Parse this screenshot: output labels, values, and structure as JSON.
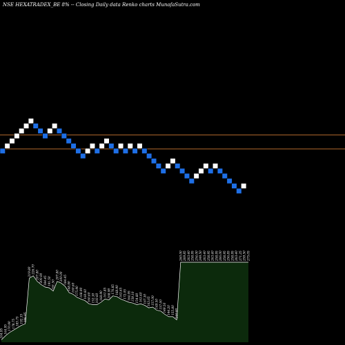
{
  "chart_data": {
    "type": "renko",
    "title": "NSE HEXATRADEX_BE 8% -- Closing Daily data Renko charts MunafaSutra.com",
    "colors": {
      "background": "#000000",
      "brick_up": "#ffffff",
      "brick_down": "#1e6fe6",
      "brick_border": "#000000",
      "reference_line": "#b36a2d",
      "volume_fill": "#0c2a0c",
      "volume_stroke": "#ffffff"
    },
    "bricks": [
      {
        "dir": "down",
        "level": 0
      },
      {
        "dir": "up",
        "level": 1
      },
      {
        "dir": "up",
        "level": 2
      },
      {
        "dir": "up",
        "level": 3
      },
      {
        "dir": "up",
        "level": 4
      },
      {
        "dir": "up",
        "level": 5
      },
      {
        "dir": "up",
        "level": 6
      },
      {
        "dir": "down",
        "level": 5
      },
      {
        "dir": "down",
        "level": 4
      },
      {
        "dir": "down",
        "level": 3
      },
      {
        "dir": "up",
        "level": 4
      },
      {
        "dir": "up",
        "level": 5
      },
      {
        "dir": "down",
        "level": 4
      },
      {
        "dir": "down",
        "level": 3
      },
      {
        "dir": "down",
        "level": 2
      },
      {
        "dir": "down",
        "level": 1
      },
      {
        "dir": "down",
        "level": 0
      },
      {
        "dir": "down",
        "level": -1
      },
      {
        "dir": "up",
        "level": 0
      },
      {
        "dir": "up",
        "level": 1
      },
      {
        "dir": "down",
        "level": 0
      },
      {
        "dir": "up",
        "level": 1
      },
      {
        "dir": "up",
        "level": 2
      },
      {
        "dir": "down",
        "level": 1
      },
      {
        "dir": "down",
        "level": 0
      },
      {
        "dir": "up",
        "level": 1
      },
      {
        "dir": "down",
        "level": 0
      },
      {
        "dir": "up",
        "level": 1
      },
      {
        "dir": "down",
        "level": 0
      },
      {
        "dir": "up",
        "level": 1
      },
      {
        "dir": "down",
        "level": 0
      },
      {
        "dir": "down",
        "level": -1
      },
      {
        "dir": "down",
        "level": -2
      },
      {
        "dir": "down",
        "level": -3
      },
      {
        "dir": "down",
        "level": -4
      },
      {
        "dir": "up",
        "level": -3
      },
      {
        "dir": "up",
        "level": -2
      },
      {
        "dir": "down",
        "level": -3
      },
      {
        "dir": "down",
        "level": -4
      },
      {
        "dir": "down",
        "level": -5
      },
      {
        "dir": "down",
        "level": -6
      },
      {
        "dir": "up",
        "level": -5
      },
      {
        "dir": "up",
        "level": -4
      },
      {
        "dir": "up",
        "level": -3
      },
      {
        "dir": "down",
        "level": -4
      },
      {
        "dir": "up",
        "level": -3
      },
      {
        "dir": "down",
        "level": -4
      },
      {
        "dir": "down",
        "level": -5
      },
      {
        "dir": "down",
        "level": -6
      },
      {
        "dir": "down",
        "level": -7
      },
      {
        "dir": "down",
        "level": -8
      },
      {
        "dir": "up",
        "level": -7
      }
    ],
    "reference_lines": [
      {
        "level": 3.2
      },
      {
        "level": 0.4
      }
    ],
    "volume": [
      {
        "label": "164.95",
        "value": 0.03
      },
      {
        "label": "164.95",
        "value": 0.08
      },
      {
        "label": "170.90",
        "value": 0.12
      },
      {
        "label": "178.75",
        "value": 0.15
      },
      {
        "label": "185.75",
        "value": 0.18
      },
      {
        "label": "192.35",
        "value": 0.21
      },
      {
        "label": "198.95",
        "value": 0.23
      },
      {
        "label": "219.80",
        "value": 0.8
      },
      {
        "label": "226.70",
        "value": 0.83
      },
      {
        "label": "207.80",
        "value": 0.76
      },
      {
        "label": "200.00",
        "value": 0.72
      },
      {
        "label": "184.45",
        "value": 0.69
      },
      {
        "label": "191.50",
        "value": 0.68
      },
      {
        "label": "191.50",
        "value": 0.64
      },
      {
        "label": "207.80",
        "value": 0.76
      },
      {
        "label": "200.00",
        "value": 0.74
      },
      {
        "label": "184.45",
        "value": 0.7
      },
      {
        "label": "168.90",
        "value": 0.62
      },
      {
        "label": "160.60",
        "value": 0.6
      },
      {
        "label": "175.90",
        "value": 0.56
      },
      {
        "label": "168.90",
        "value": 0.54
      },
      {
        "label": "160.60",
        "value": 0.52
      },
      {
        "label": "160.60",
        "value": 0.48
      },
      {
        "label": "152.30",
        "value": 0.47
      },
      {
        "label": "160.60",
        "value": 0.47
      },
      {
        "label": "168.90",
        "value": 0.5
      },
      {
        "label": "161.85",
        "value": 0.54
      },
      {
        "label": "168.90",
        "value": 0.53
      },
      {
        "label": "176.85",
        "value": 0.58
      },
      {
        "label": "168.90",
        "value": 0.57
      },
      {
        "label": "163.65",
        "value": 0.54
      },
      {
        "label": "172.05",
        "value": 0.52
      },
      {
        "label": "164.95",
        "value": 0.5
      },
      {
        "label": "159.10",
        "value": 0.49
      },
      {
        "label": "154.80",
        "value": 0.47
      },
      {
        "label": "163.40",
        "value": 0.48
      },
      {
        "label": "167.30",
        "value": 0.46
      },
      {
        "label": "163.65",
        "value": 0.43
      },
      {
        "label": "157.00",
        "value": 0.44
      },
      {
        "label": "149.50",
        "value": 0.4
      },
      {
        "label": "157.00",
        "value": 0.39
      },
      {
        "label": "149.50",
        "value": 0.35
      },
      {
        "label": "144.20",
        "value": 0.32
      },
      {
        "label": "155.80",
        "value": 0.32
      },
      {
        "label": "140.80",
        "value": 0.28
      },
      {
        "label": "260.00",
        "value": 1.0
      },
      {
        "label": "269.85",
        "value": 1.0
      },
      {
        "label": "263.40",
        "value": 1.0
      },
      {
        "label": "258.95",
        "value": 1.0
      },
      {
        "label": "254.00",
        "value": 1.0
      },
      {
        "label": "249.50",
        "value": 1.0
      },
      {
        "label": "263.40",
        "value": 1.0
      },
      {
        "label": "258.95",
        "value": 1.0
      },
      {
        "label": "263.40",
        "value": 1.0
      },
      {
        "label": "258.95",
        "value": 1.0
      },
      {
        "label": "266.00",
        "value": 1.0
      },
      {
        "label": "258.95",
        "value": 1.0
      },
      {
        "label": "256.85",
        "value": 1.0
      },
      {
        "label": "258.95",
        "value": 1.0
      },
      {
        "label": "263.40",
        "value": 1.0
      },
      {
        "label": "271.25",
        "value": 1.0
      },
      {
        "label": "259.50",
        "value": 1.0
      },
      {
        "label": "275.05",
        "value": 1.0
      }
    ]
  }
}
